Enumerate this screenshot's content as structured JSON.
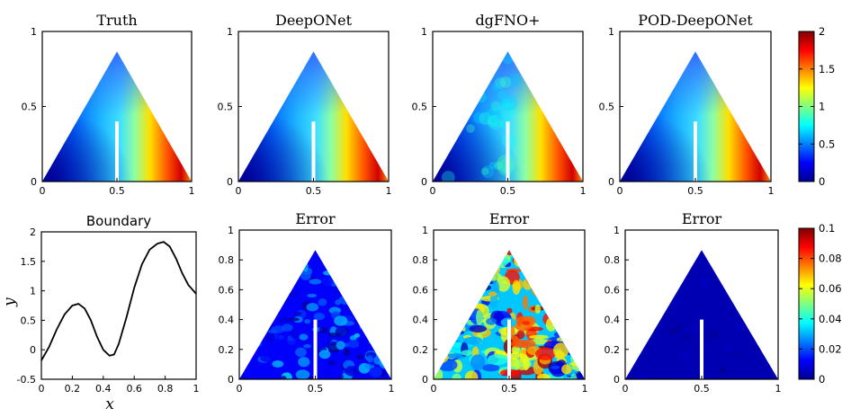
{
  "chart_data": [
    {
      "type": "heatmap",
      "title": "Truth",
      "xlim": [
        0,
        1
      ],
      "ylim": [
        0,
        1
      ],
      "xticks": [
        "0",
        "0.5",
        "1"
      ],
      "yticks": [
        "0",
        "0.5",
        "1"
      ],
      "domain": "equilateral triangle with vertical slit at x=0.5 from y=0 to 0.4",
      "value_range": [
        0,
        2
      ],
      "field_samples": [
        {
          "x": 0.05,
          "y": 0.02,
          "v": 0.1
        },
        {
          "x": 0.3,
          "y": 0.1,
          "v": 0.5
        },
        {
          "x": 0.5,
          "y": 0.6,
          "v": 0.6
        },
        {
          "x": 0.62,
          "y": 0.1,
          "v": 1.2
        },
        {
          "x": 0.8,
          "y": 0.1,
          "v": 1.8
        },
        {
          "x": 0.9,
          "y": 0.05,
          "v": 1.6
        }
      ]
    },
    {
      "type": "heatmap",
      "title": "DeepONet",
      "xlim": [
        0,
        1
      ],
      "ylim": [
        0,
        1
      ],
      "xticks": [
        "0",
        "0.5",
        "1"
      ],
      "yticks": [
        "0",
        "0.5",
        "1"
      ],
      "value_range": [
        0,
        2
      ],
      "field_samples": [
        {
          "x": 0.05,
          "y": 0.02,
          "v": 0.1
        },
        {
          "x": 0.3,
          "y": 0.1,
          "v": 0.5
        },
        {
          "x": 0.5,
          "y": 0.6,
          "v": 0.6
        },
        {
          "x": 0.62,
          "y": 0.1,
          "v": 1.2
        },
        {
          "x": 0.8,
          "y": 0.1,
          "v": 1.8
        },
        {
          "x": 0.9,
          "y": 0.05,
          "v": 1.6
        }
      ]
    },
    {
      "type": "heatmap",
      "title": "dgFNO+",
      "xlim": [
        0,
        1
      ],
      "ylim": [
        0,
        1
      ],
      "xticks": [
        "0",
        "0.5",
        "1"
      ],
      "yticks": [
        "0",
        "0.5",
        "1"
      ],
      "value_range": [
        0,
        2
      ],
      "field_samples": [
        {
          "x": 0.05,
          "y": 0.02,
          "v": 0.1
        },
        {
          "x": 0.3,
          "y": 0.1,
          "v": 0.5
        },
        {
          "x": 0.5,
          "y": 0.6,
          "v": 0.6
        },
        {
          "x": 0.62,
          "y": 0.1,
          "v": 1.1
        },
        {
          "x": 0.8,
          "y": 0.1,
          "v": 1.7
        },
        {
          "x": 0.9,
          "y": 0.05,
          "v": 1.6
        }
      ]
    },
    {
      "type": "heatmap",
      "title": "POD-DeepONet",
      "xlim": [
        0,
        1
      ],
      "ylim": [
        0,
        1
      ],
      "xticks": [
        "0",
        "0.5",
        "1"
      ],
      "yticks": [
        "0",
        "0.5",
        "1"
      ],
      "value_range": [
        0,
        2
      ],
      "field_samples": [
        {
          "x": 0.05,
          "y": 0.02,
          "v": 0.1
        },
        {
          "x": 0.3,
          "y": 0.1,
          "v": 0.5
        },
        {
          "x": 0.5,
          "y": 0.6,
          "v": 0.6
        },
        {
          "x": 0.62,
          "y": 0.1,
          "v": 1.2
        },
        {
          "x": 0.8,
          "y": 0.1,
          "v": 1.8
        },
        {
          "x": 0.9,
          "y": 0.05,
          "v": 1.6
        }
      ]
    },
    {
      "type": "line",
      "title": "Boundary",
      "xlabel": "x",
      "ylabel": "y",
      "xlim": [
        0,
        1
      ],
      "ylim": [
        -0.5,
        2
      ],
      "xticks": [
        "0",
        "0.2",
        "0.4",
        "0.6",
        "0.8",
        "1"
      ],
      "yticks": [
        "-0.5",
        "0",
        "0.5",
        "1",
        "1.5",
        "2"
      ],
      "series": [
        {
          "x": [
            0,
            0.05,
            0.1,
            0.15,
            0.2,
            0.24,
            0.28,
            0.32,
            0.36,
            0.4,
            0.44,
            0.47,
            0.5,
            0.55,
            0.6,
            0.65,
            0.7,
            0.75,
            0.79,
            0.83,
            0.87,
            0.91,
            0.95,
            1.0
          ],
          "y": [
            -0.18,
            0.05,
            0.35,
            0.6,
            0.75,
            0.78,
            0.7,
            0.5,
            0.22,
            0.0,
            -0.1,
            -0.08,
            0.1,
            0.55,
            1.05,
            1.45,
            1.7,
            1.8,
            1.83,
            1.75,
            1.55,
            1.3,
            1.1,
            0.95
          ]
        }
      ]
    },
    {
      "type": "heatmap",
      "title": "Error",
      "xlim": [
        0,
        1
      ],
      "ylim": [
        0,
        1
      ],
      "xticks": [
        "0",
        "0.5",
        "1"
      ],
      "yticks": [
        "0",
        "0.2",
        "0.4",
        "0.6",
        "0.8",
        "1"
      ],
      "value_range": [
        0,
        0.1
      ],
      "typical_error": 0.015
    },
    {
      "type": "heatmap",
      "title": "Error",
      "xlim": [
        0,
        1
      ],
      "ylim": [
        0,
        1
      ],
      "xticks": [
        "0",
        "0.5",
        "1"
      ],
      "yticks": [
        "0",
        "0.2",
        "0.4",
        "0.6",
        "0.8",
        "1"
      ],
      "value_range": [
        0,
        0.1
      ],
      "typical_error": 0.04
    },
    {
      "type": "heatmap",
      "title": "Error",
      "xlim": [
        0,
        1
      ],
      "ylim": [
        0,
        1
      ],
      "xticks": [
        "0",
        "0.5",
        "1"
      ],
      "yticks": [
        "0",
        "0.2",
        "0.4",
        "0.6",
        "0.8",
        "1"
      ],
      "value_range": [
        0,
        0.1
      ],
      "typical_error": 0.005
    }
  ],
  "colorbars": [
    {
      "ticks": [
        "2",
        "1.5",
        "1",
        "0.5",
        "0"
      ],
      "range": [
        0,
        2
      ]
    },
    {
      "ticks": [
        "0.1",
        "0.08",
        "0.06",
        "0.04",
        "0.02",
        "0"
      ],
      "range": [
        0,
        0.1
      ]
    }
  ],
  "colors": {
    "jet_low": "#00008f",
    "jet_mid": "#00ffff",
    "jet_high": "#800000",
    "slit": "#ffffff"
  }
}
